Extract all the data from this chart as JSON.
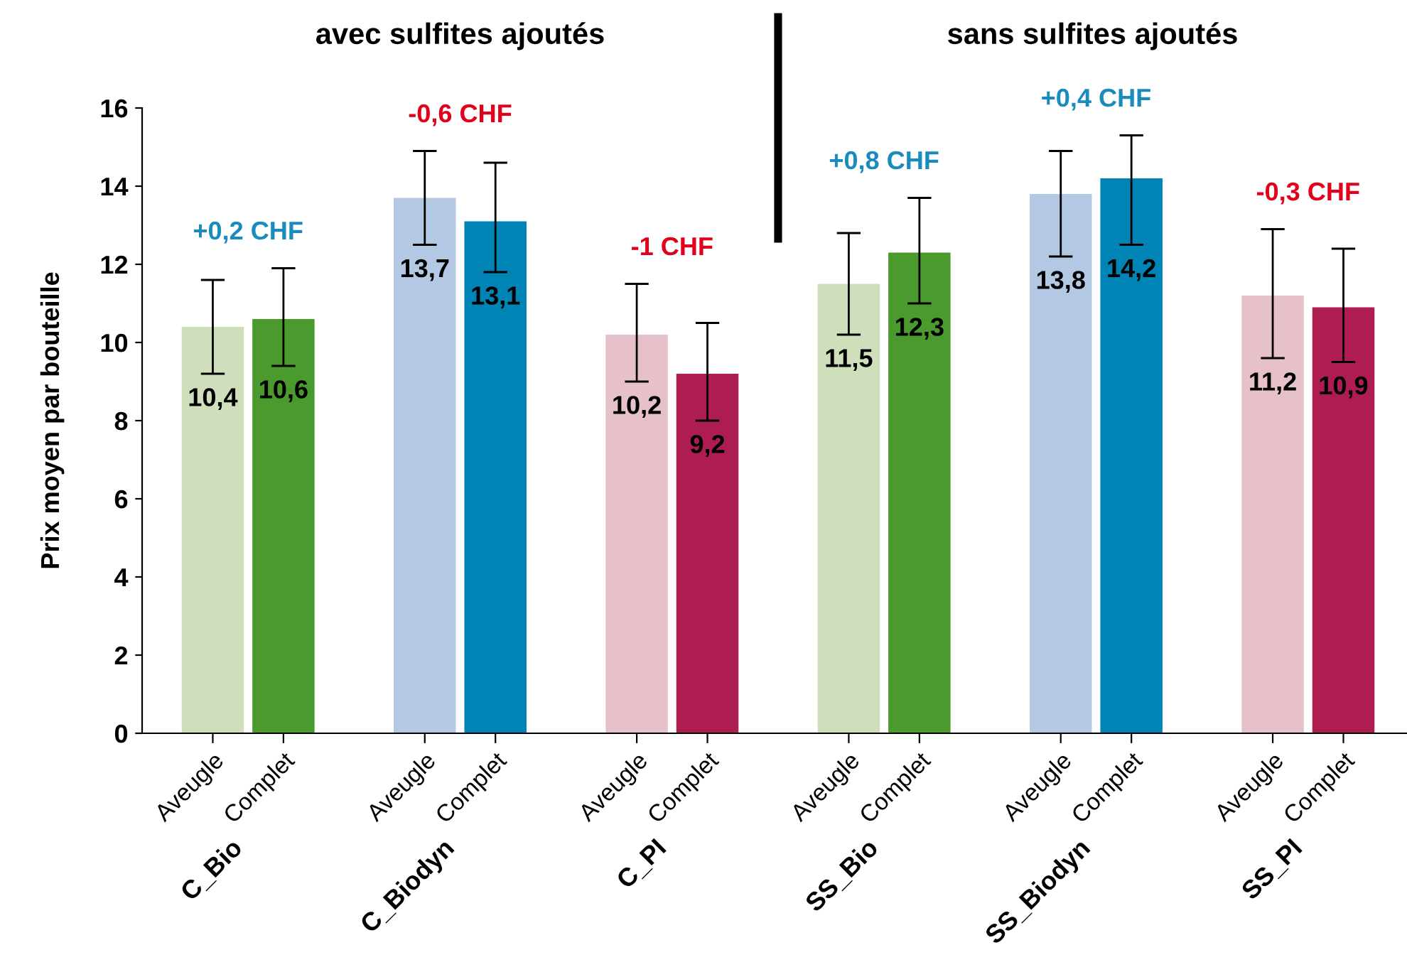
{
  "chart_data": {
    "type": "bar",
    "ylabel": "Prix moyen par bouteille",
    "categories": [
      "Aveugle",
      "Complet",
      null,
      "Aveugle",
      "Complet",
      null,
      "Aveugle",
      "Complet",
      null,
      "Aveugle",
      "Complet",
      null,
      "Aveugle",
      "Complet",
      null,
      "Aveugle",
      "Complet"
    ],
    "values": [
      10.4,
      10.6,
      null,
      13.7,
      13.1,
      null,
      10.2,
      9.2,
      null,
      11.5,
      12.3,
      null,
      13.8,
      14.2,
      null,
      11.2,
      10.9
    ],
    "colors": [
      "#cfdfbc",
      "#4a9a2e",
      null,
      "#b3c9e3",
      "#0083b5",
      null,
      "#e6c1c9",
      "#ad1d51",
      null,
      "#cfdfbc",
      "#4a9a2e",
      null,
      "#b3c9e3",
      "#0083b5",
      null,
      "#e6c1c9",
      "#ad1d51"
    ],
    "value_labels": [
      "10,4",
      "10,6",
      null,
      "13,7",
      "13,1",
      null,
      "10,2",
      "9,2",
      null,
      "11,5",
      "12,3",
      null,
      "13,8",
      "14,2",
      null,
      "11,2",
      "10,9"
    ],
    "errors": [
      [
        9.2,
        11.6
      ],
      [
        9.4,
        11.9
      ],
      null,
      [
        12.5,
        14.9
      ],
      [
        11.8,
        14.6
      ],
      null,
      [
        9.0,
        11.5
      ],
      [
        8.0,
        10.5
      ],
      null,
      [
        10.2,
        12.8
      ],
      [
        11.0,
        13.7
      ],
      null,
      [
        12.2,
        14.9
      ],
      [
        12.5,
        15.3
      ],
      null,
      [
        9.6,
        12.9
      ],
      [
        9.5,
        12.4
      ]
    ],
    "ylim": [
      0,
      16
    ],
    "yticks": [
      0,
      2,
      4,
      6,
      8,
      10,
      12,
      14,
      16
    ],
    "grid": false,
    "annotations": [
      "avec sulfites ajoutés",
      "sans sulfites ajoutés",
      "+0,2 CHF",
      "-0,6 CHF",
      "-1 CHF",
      "+0,8 CHF",
      "+0,4 CHF",
      "-0,3 CHF",
      "C_Bio",
      "C_Biodyn",
      "C_PI",
      "SS_Bio",
      "SS_Biodyn",
      "SS_PI"
    ]
  }
}
